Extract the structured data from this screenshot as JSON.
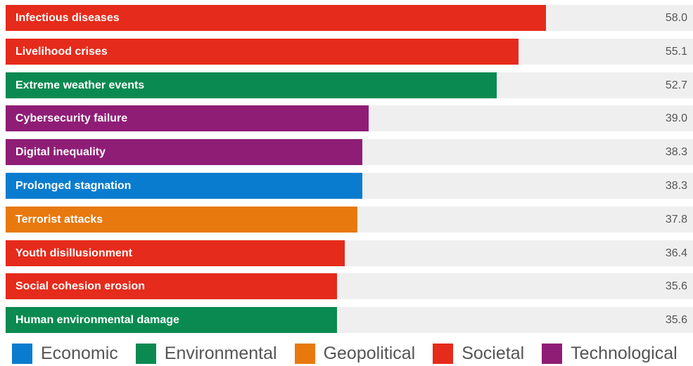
{
  "chart_data": {
    "type": "bar",
    "orientation": "horizontal",
    "xlim": [
      0,
      73.8
    ],
    "categories": [
      "Infectious diseases",
      "Livelihood crises",
      "Extreme weather events",
      "Cybersecurity failure",
      "Digital inequality",
      "Prolonged stagnation",
      "Terrorist attacks",
      "Youth disillusionment",
      "Social cohesion erosion",
      "Human environmental damage"
    ],
    "values": [
      58.0,
      55.1,
      52.7,
      39.0,
      38.3,
      38.3,
      37.8,
      36.4,
      35.6,
      35.6
    ],
    "value_labels": [
      "58.0",
      "55.1",
      "52.7",
      "39.0",
      "38.3",
      "38.3",
      "37.8",
      "36.4",
      "35.6",
      "35.6"
    ],
    "bar_categories": [
      "Societal",
      "Societal",
      "Environmental",
      "Technological",
      "Technological",
      "Economic",
      "Geopolitical",
      "Societal",
      "Societal",
      "Environmental"
    ],
    "legend": [
      {
        "name": "Economic",
        "color": "#0a7ccf"
      },
      {
        "name": "Environmental",
        "color": "#0a8a50"
      },
      {
        "name": "Geopolitical",
        "color": "#e8790f"
      },
      {
        "name": "Societal",
        "color": "#e52b1b"
      },
      {
        "name": "Technological",
        "color": "#8f1d76"
      }
    ],
    "legend_position": "bottom",
    "track_color": "#efefef",
    "grid": false
  }
}
